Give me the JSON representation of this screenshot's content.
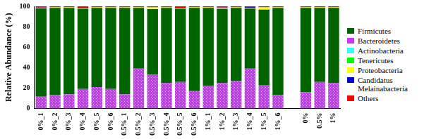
{
  "chart_data": {
    "type": "bar",
    "stacked": true,
    "grid": false,
    "legend": "right",
    "y_label": "Relative Abundance (%)",
    "categories": [
      "0%_1",
      "0%_2",
      "0%_3",
      "0%_4",
      "0%_5",
      "0%_6",
      "0.5%_1",
      "0.5%_2",
      "0.5%_3",
      "0.5%_4",
      "0.5%_5",
      "0.5%_6",
      "1%_1",
      "1%_2",
      "1%_3",
      "1%_4",
      "1%_5",
      "1%_6",
      null,
      "0%",
      "0.5%",
      "1%"
    ],
    "ylim": [
      0,
      100
    ],
    "yticks": [
      0,
      20,
      40,
      60,
      80,
      100
    ],
    "series": [
      {
        "name": "Firmicutes",
        "color": "#006400",
        "values": [
          86.1,
          85.5,
          84.5,
          78.5,
          77.5,
          79.5,
          84.5,
          59.5,
          64.3,
          73.5,
          71.5,
          81.5,
          76.5,
          72.6,
          71.5,
          58.2,
          73.8,
          85.5,
          null,
          82.5,
          72.5,
          73.5
        ]
      },
      {
        "name": "Bacteroidetes",
        "color": "#cc33ff",
        "values": [
          12,
          13,
          14,
          19,
          21,
          19,
          14,
          39,
          33,
          25,
          26,
          17,
          22,
          25,
          27,
          39,
          23,
          13,
          null,
          16,
          26,
          25
        ]
      },
      {
        "name": "Actinobacteria",
        "color": "#33ffff",
        "values": [
          0.1,
          0.1,
          0.1,
          0.1,
          0.1,
          0.1,
          0.1,
          0.1,
          0.1,
          0.1,
          0.1,
          0.1,
          0.1,
          0.1,
          0.1,
          0.1,
          0.1,
          0.1,
          null,
          0.1,
          0.1,
          0.1
        ]
      },
      {
        "name": "Tenericutes",
        "color": "#00ff00",
        "values": [
          0.1,
          0.1,
          0.1,
          0.1,
          0.1,
          0.1,
          0.1,
          0.1,
          0.1,
          0.1,
          0.1,
          0.1,
          0.1,
          0.1,
          0.1,
          0.1,
          0.1,
          0.1,
          null,
          0.1,
          0.1,
          0.1
        ]
      },
      {
        "name": "Proteobacteria",
        "color": "#ffff00",
        "values": [
          0.3,
          0.3,
          0.3,
          0.3,
          0.3,
          0.3,
          0.3,
          0.3,
          1.5,
          0.3,
          0.3,
          0.3,
          0.3,
          0.8,
          0.3,
          0.3,
          2,
          0.3,
          null,
          0.3,
          0.3,
          0.3
        ]
      },
      {
        "name": "Candidatus Melainabacteria",
        "color": "#0000cc",
        "values": [
          0.2,
          0.2,
          0.2,
          0.2,
          0.2,
          0.2,
          0.2,
          0.2,
          0.2,
          0.2,
          0.2,
          0.2,
          0.2,
          0.2,
          0.2,
          1.5,
          0.2,
          0.2,
          null,
          0.2,
          0.2,
          0.2
        ]
      },
      {
        "name": "Others",
        "color": "#ff0000",
        "values": [
          1.2,
          0.8,
          0.8,
          1.8,
          0.8,
          0.8,
          0.8,
          0.8,
          0.8,
          0.8,
          1.8,
          0.8,
          0.8,
          1.2,
          0.8,
          0.8,
          0.8,
          0.8,
          null,
          0.8,
          0.8,
          0.8
        ]
      }
    ]
  }
}
